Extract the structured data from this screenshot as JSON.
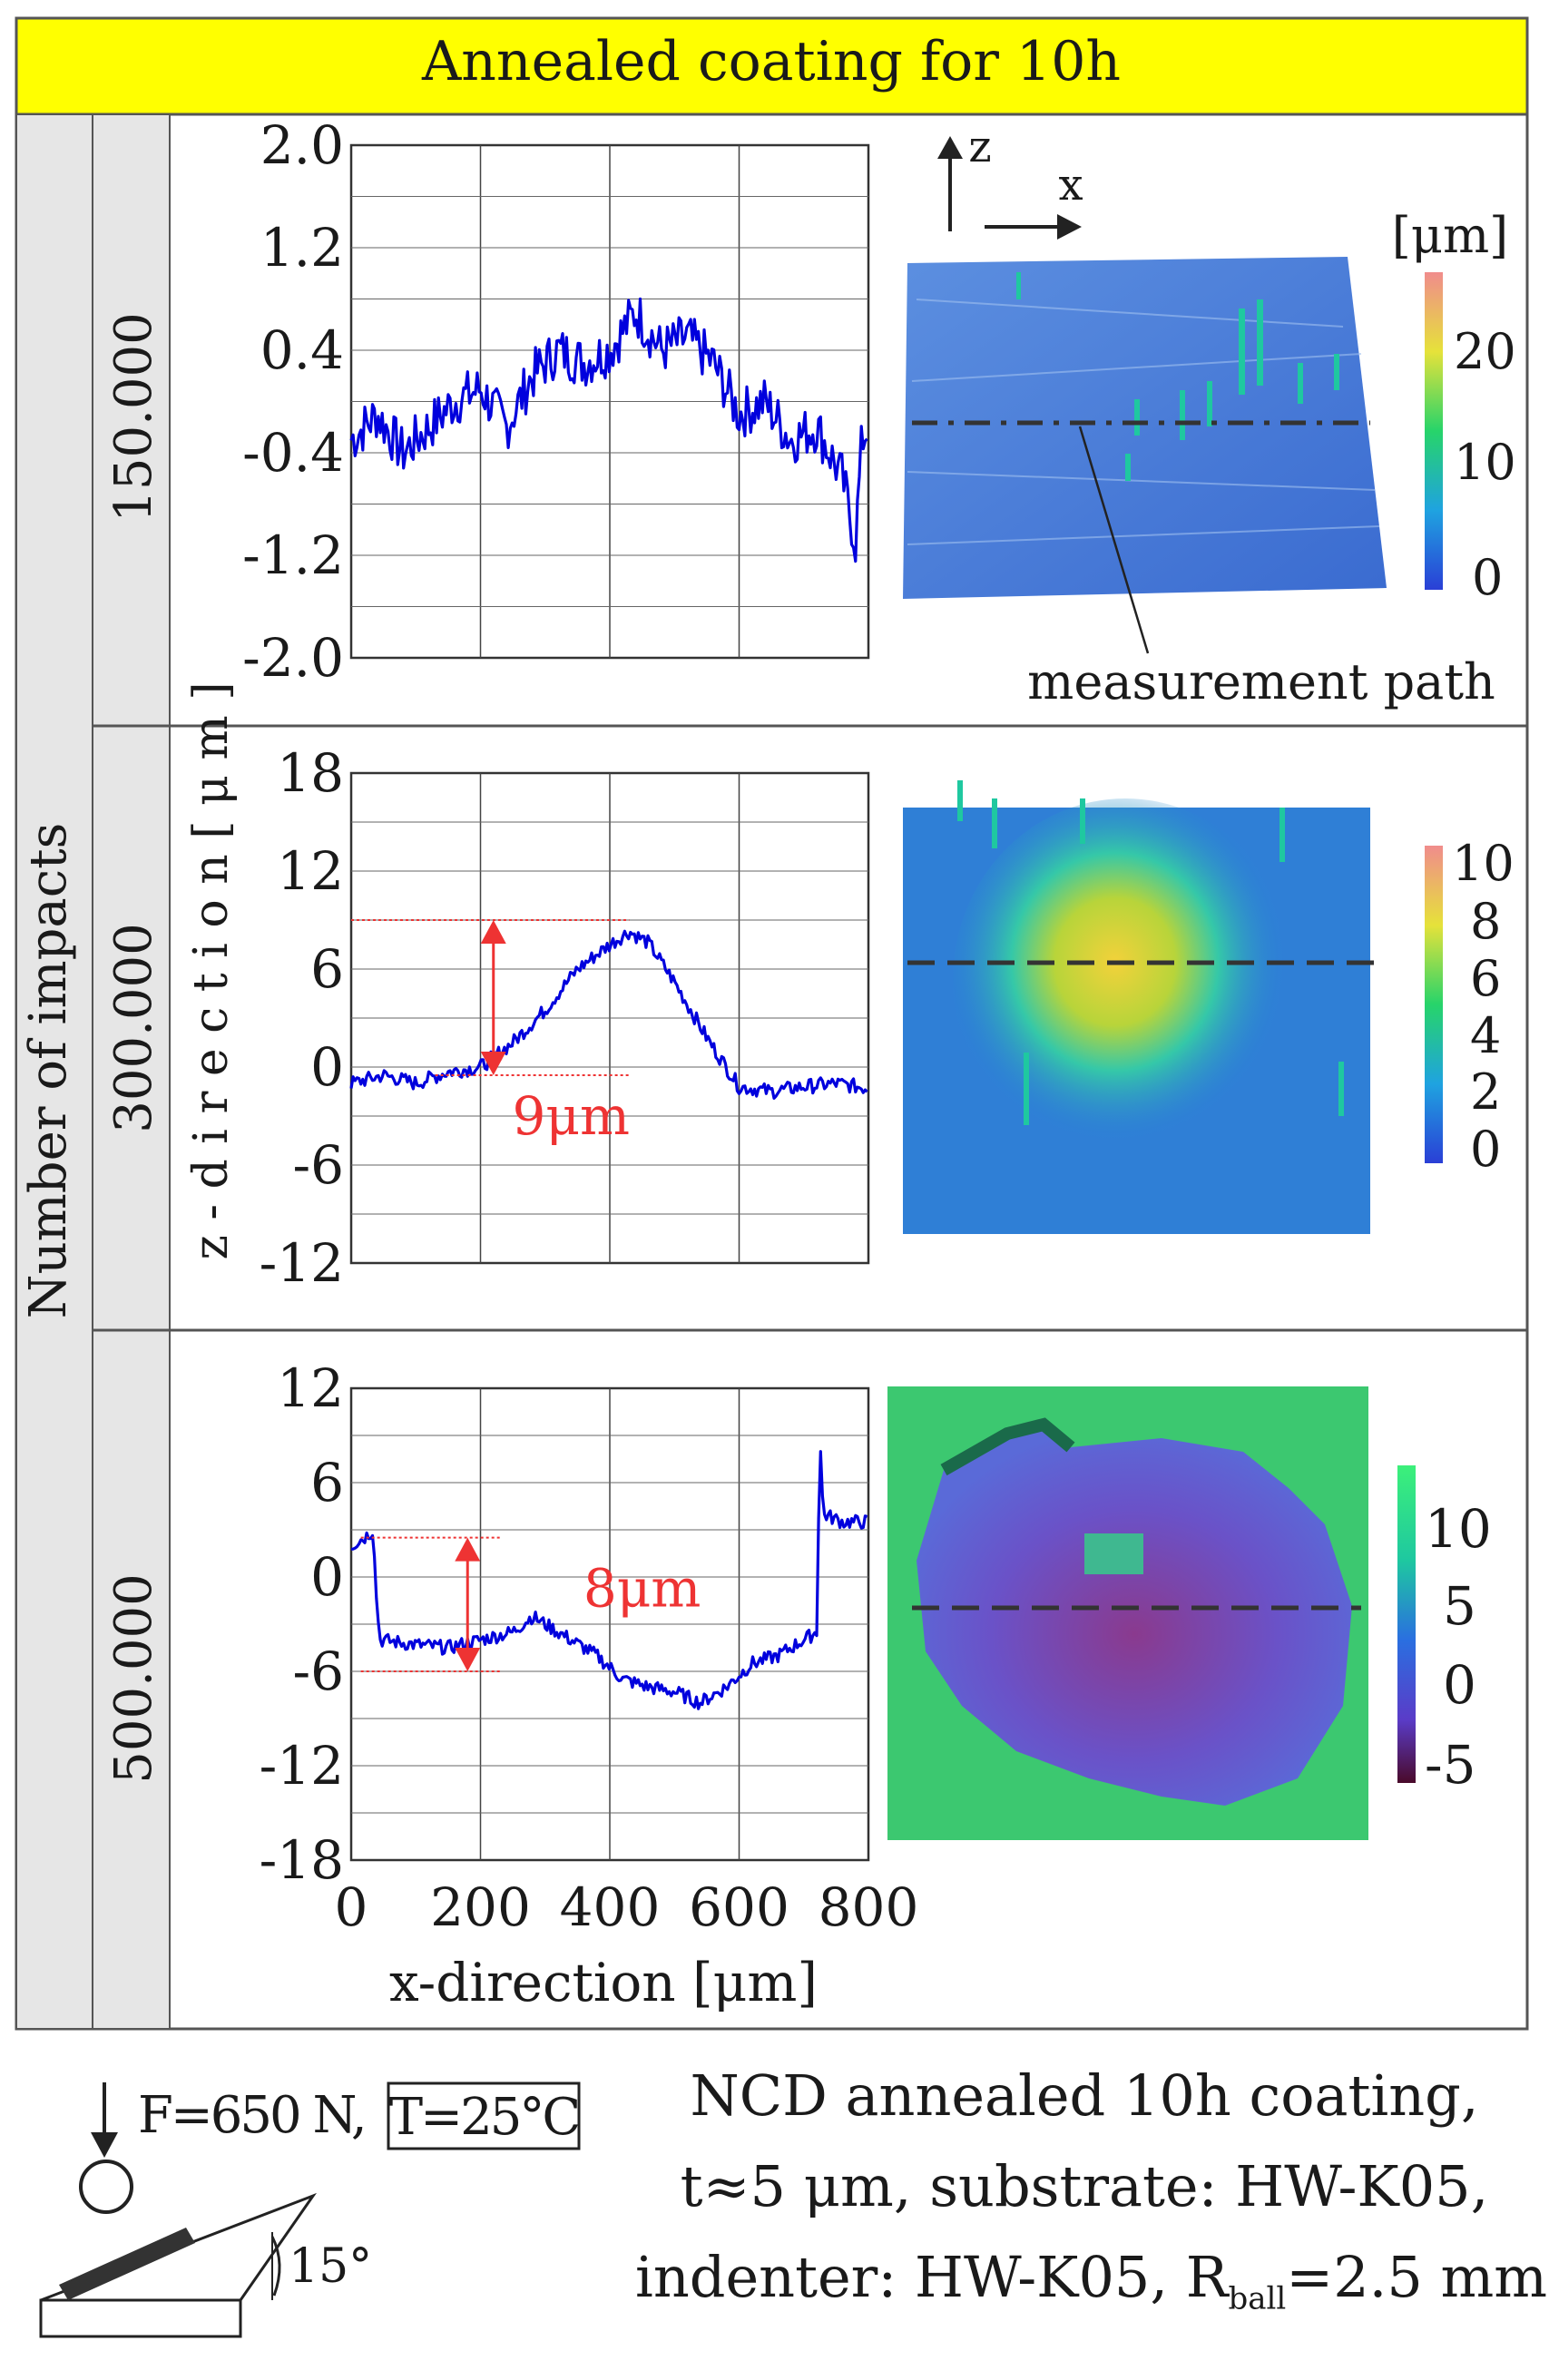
{
  "header": {
    "title": "Annealed coating for 10h"
  },
  "left_labels": {
    "number_of_impacts": "Number of impacts",
    "row_labels": [
      "150.000",
      "300.000",
      "500.000"
    ],
    "z_axis_label": "z - d i r e c t i o n  [ μ m ]"
  },
  "colors": {
    "header_bg": "#ffff00",
    "line": "#0000dd",
    "annotation": "#ee3333",
    "label_column": "#e6e6e6"
  },
  "chart_data": [
    {
      "type": "line",
      "row": "150.000",
      "xlim": [
        0,
        800
      ],
      "ylim": [
        -2.0,
        2.0
      ],
      "yticks": [
        2.0,
        1.2,
        0.4,
        -0.4,
        -1.2,
        -2.0
      ],
      "ytick_labels": [
        "2.0",
        "1.2",
        "0.4",
        "-0.4",
        "-1.2",
        "-2.0"
      ],
      "series": [
        {
          "name": "profile",
          "x": [
            0,
            40,
            80,
            120,
            160,
            200,
            240,
            280,
            320,
            360,
            400,
            440,
            480,
            520,
            560,
            600,
            640,
            680,
            720,
            760,
            780,
            790,
            800
          ],
          "y": [
            -0.3,
            -0.1,
            -0.4,
            -0.2,
            0.0,
            0.1,
            -0.2,
            0.2,
            0.4,
            0.3,
            0.4,
            0.7,
            0.4,
            0.5,
            0.3,
            -0.1,
            0.0,
            -0.3,
            -0.2,
            -0.6,
            -1.1,
            -0.3,
            -0.2
          ]
        }
      ],
      "right_panel": {
        "axis_label_z": "z",
        "axis_label_x": "x",
        "colorbar_title": "[μm]",
        "colorbar_ticks": [
          "20",
          "10",
          "0"
        ],
        "annotation": "measurement path"
      }
    },
    {
      "type": "line",
      "row": "300.000",
      "xlim": [
        0,
        800
      ],
      "ylim": [
        -12,
        18
      ],
      "yticks": [
        18,
        12,
        6,
        0,
        -6,
        -12
      ],
      "ytick_labels": [
        "18",
        "12",
        "6",
        "0",
        "-6",
        "-12"
      ],
      "series": [
        {
          "name": "profile",
          "x": [
            0,
            50,
            100,
            150,
            200,
            250,
            300,
            350,
            400,
            430,
            460,
            500,
            550,
            600,
            650,
            700,
            750,
            800
          ],
          "y": [
            -1,
            -0.5,
            -1,
            -0.3,
            0,
            1.5,
            3.5,
            6,
            7.5,
            8.3,
            7.6,
            5.2,
            1.8,
            -1.2,
            -1.5,
            -1.2,
            -1.0,
            -1.3
          ]
        }
      ],
      "annotation": {
        "text": "9μm",
        "from": -0.5,
        "to": 9
      },
      "right_panel": {
        "colorbar_ticks": [
          "10",
          "8",
          "6",
          "4",
          "2",
          "0"
        ]
      }
    },
    {
      "type": "line",
      "row": "500.000",
      "xlim": [
        0,
        800
      ],
      "ylim": [
        -18,
        12
      ],
      "yticks": [
        12,
        6,
        0,
        -6,
        -12,
        -18
      ],
      "ytick_labels": [
        "12",
        "6",
        "0",
        "-6",
        "-12",
        "-18"
      ],
      "xticks": [
        0,
        200,
        400,
        600,
        800
      ],
      "xtick_labels": [
        "0",
        "200",
        "400",
        "600",
        "800"
      ],
      "xlabel": "x-direction [μm]",
      "series": [
        {
          "name": "profile",
          "x": [
            0,
            20,
            35,
            38,
            45,
            100,
            150,
            200,
            250,
            280,
            320,
            380,
            420,
            460,
            500,
            540,
            580,
            620,
            660,
            700,
            720,
            725,
            730,
            760,
            800
          ],
          "y": [
            2,
            2.5,
            3,
            -1,
            -4,
            -4.3,
            -4.5,
            -4,
            -3.5,
            -2.5,
            -3.5,
            -5,
            -6.5,
            -7,
            -7.3,
            -8,
            -7,
            -5.5,
            -5,
            -4,
            -3.5,
            9,
            4,
            3.5,
            3.5
          ]
        }
      ],
      "annotation": {
        "text": "8μm",
        "from": -6,
        "to": 2.5
      },
      "right_panel": {
        "colorbar_ticks": [
          "10",
          "5",
          "0",
          "-5"
        ]
      }
    }
  ],
  "footer": {
    "force": "F=650 N,",
    "temperature": "T=25°C",
    "angle": "15°",
    "caption_line1": "NCD annealed 10h coating,",
    "caption_line2": "t≈5 μm, substrate: HW-K05,",
    "caption_line3a": "indenter: HW-K05, R",
    "caption_sub": "ball",
    "caption_line3b": "=2.5 mm"
  }
}
